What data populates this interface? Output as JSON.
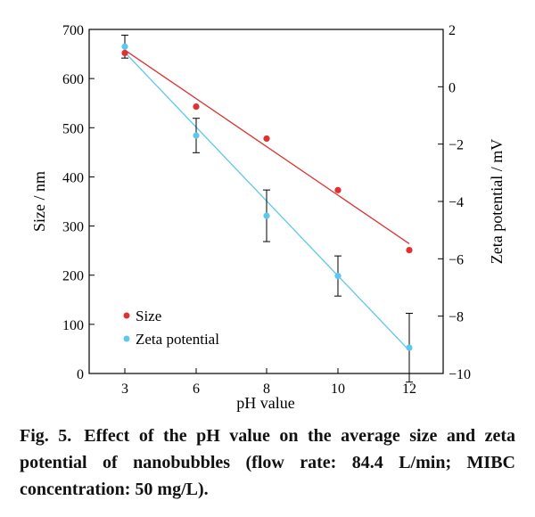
{
  "chart_data": {
    "type": "scatter",
    "xlabel": "pH value",
    "x_ticks": [
      3,
      6,
      8,
      10,
      12
    ],
    "left_axis": {
      "label": "Size / nm",
      "ylim": [
        0,
        700
      ],
      "ticks": [
        "0",
        "100",
        "200",
        "300",
        "400",
        "500",
        "600",
        "700"
      ]
    },
    "right_axis": {
      "label": "Zeta potential / mV",
      "ylim": [
        -10,
        2
      ],
      "ticks": [
        "−10",
        "−8",
        "−6",
        "−4",
        "−2",
        "0",
        "2"
      ]
    },
    "series": [
      {
        "name": "Size",
        "axis": "left",
        "color": "#e03030",
        "points": [
          {
            "x": 3,
            "y": 652
          },
          {
            "x": 6,
            "y": 543
          },
          {
            "x": 8,
            "y": 478
          },
          {
            "x": 10,
            "y": 373
          },
          {
            "x": 12,
            "y": 251
          }
        ],
        "fit_line": [
          [
            3,
            658
          ],
          [
            12,
            264
          ]
        ]
      },
      {
        "name": "Zeta potential",
        "axis": "right",
        "color": "#5bc8ee",
        "points": [
          {
            "x": 3,
            "y": 1.4,
            "err": 0.4
          },
          {
            "x": 6,
            "y": -1.7,
            "err": 0.6
          },
          {
            "x": 8,
            "y": -4.5,
            "err": 0.9
          },
          {
            "x": 10,
            "y": -6.6,
            "err": 0.7
          },
          {
            "x": 12,
            "y": -9.1,
            "err": 1.2
          }
        ],
        "fit_line": [
          [
            3,
            1.2
          ],
          [
            12,
            -9.2
          ]
        ]
      }
    ],
    "legend_position": "bottom-left",
    "grid": false
  },
  "caption": {
    "label": "Fig. 5.",
    "text": "Effect of the pH value on the average size and zeta potential of nanobubbles (flow rate: 84.4 L/min; MIBC concentration: 50 mg/L)."
  }
}
